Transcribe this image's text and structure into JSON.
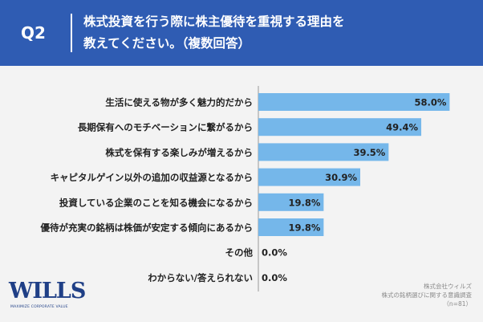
{
  "header": {
    "question_id": "Q2",
    "title_line1": "株式投資を行う際に株主優待を重視する理由を",
    "title_line2": "教えてください。（複数回答）"
  },
  "colors": {
    "header_bg": "#2f5cb3",
    "bar": "#75b7ea",
    "page_bg": "#f3f3f3"
  },
  "chart_data": {
    "type": "bar",
    "orientation": "horizontal",
    "categories": [
      "生活に使える物が多く魅力的だから",
      "長期保有へのモチベーションに繋がるから",
      "株式を保有する楽しみが増えるから",
      "キャピタルゲイン以外の追加の収益源となるから",
      "投資している企業のことを知る機会になるから",
      "優待が充実の銘柄は株価が安定する傾向にあるから",
      "その他",
      "わからない/答えられない"
    ],
    "values": [
      58.0,
      49.4,
      39.5,
      30.9,
      19.8,
      19.8,
      0.0,
      0.0
    ],
    "value_labels": [
      "58.0%",
      "49.4%",
      "39.5%",
      "30.9%",
      "19.8%",
      "19.8%",
      "0.0%",
      "0.0%"
    ],
    "xlim": [
      0,
      60
    ],
    "grid": false,
    "legend": "none"
  },
  "logo": {
    "text": "WILLS",
    "tagline": "MAXIMIZE CORPORATE VALUE"
  },
  "source": {
    "line1": "株式会社ウィルズ",
    "line2": "株式の銘柄選びに関する意識調査",
    "line3": "（n=81）"
  }
}
